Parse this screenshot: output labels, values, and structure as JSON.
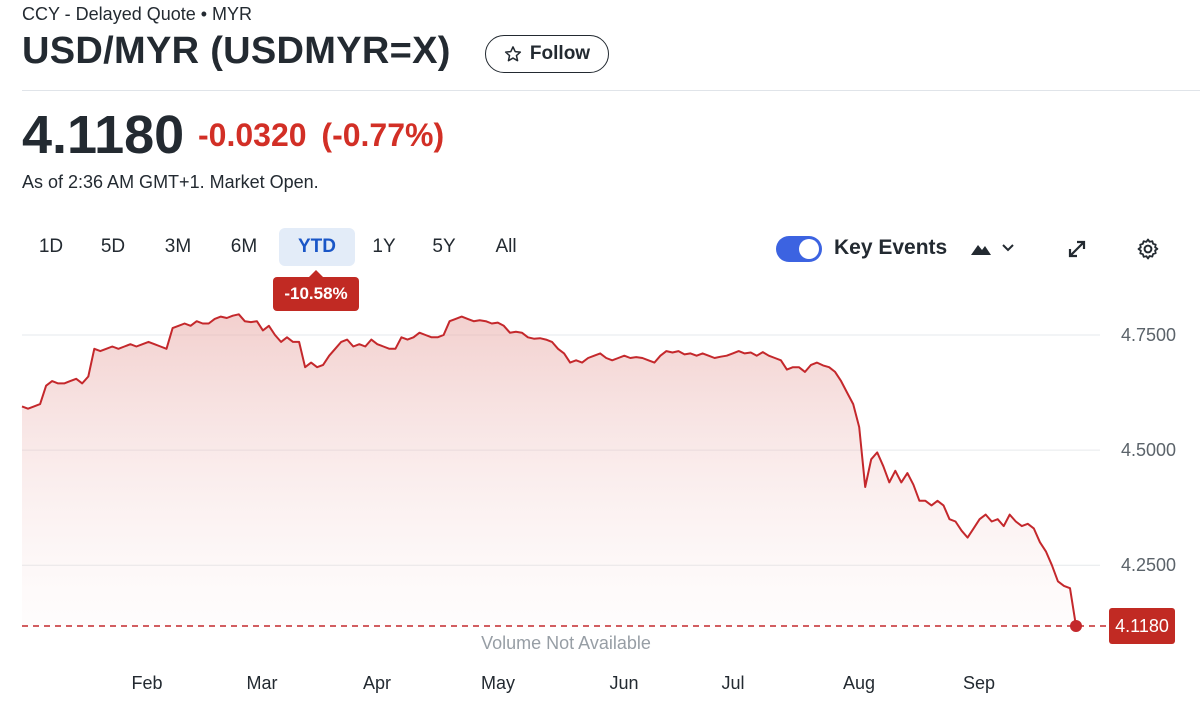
{
  "header": {
    "meta": "CCY - Delayed Quote • MYR",
    "title": "USD/MYR (USDMYR=X)",
    "follow_label": "Follow"
  },
  "quote": {
    "price": "4.1180",
    "change": "-0.0320",
    "change_pct": "(-0.77%)",
    "as_of": "As of 2:36 AM GMT+1. Market Open."
  },
  "ranges": [
    "1D",
    "5D",
    "3M",
    "6M",
    "YTD",
    "1Y",
    "5Y",
    "All"
  ],
  "active_range": "YTD",
  "ytd_change": "-10.58%",
  "key_events": {
    "label": "Key Events",
    "enabled": true
  },
  "colors": {
    "negative": "#d22f26",
    "badge": "#c12a23",
    "active_range_bg": "#e3ecf8",
    "active_range_text": "#1a56c7",
    "toggle": "#3c63e1"
  },
  "icons": [
    "star-icon",
    "mountain-icon",
    "chevron-down-icon",
    "expand-icon",
    "gear-icon"
  ],
  "chart_data": {
    "type": "area",
    "series": [
      {
        "values": [
          4.595,
          4.59,
          4.595,
          4.6,
          4.64,
          4.65,
          4.645,
          4.645,
          4.65,
          4.655,
          4.645,
          4.66,
          4.72,
          4.715,
          4.72,
          4.725,
          4.72,
          4.725,
          4.73,
          4.725,
          4.73,
          4.735,
          4.73,
          4.725,
          4.72,
          4.765,
          4.77,
          4.775,
          4.77,
          4.78,
          4.775,
          4.775,
          4.785,
          4.79,
          4.787,
          4.792,
          4.795,
          4.78,
          4.778,
          4.78,
          4.76,
          4.77,
          4.75,
          4.735,
          4.745,
          4.735,
          4.735,
          4.68,
          4.69,
          4.68,
          4.685,
          4.705,
          4.72,
          4.735,
          4.74,
          4.725,
          4.73,
          4.725,
          4.74,
          4.73,
          4.725,
          4.72,
          4.72,
          4.745,
          4.74,
          4.745,
          4.755,
          4.75,
          4.745,
          4.745,
          4.75,
          4.78,
          4.785,
          4.79,
          4.785,
          4.78,
          4.782,
          4.78,
          4.775,
          4.777,
          4.77,
          4.755,
          4.757,
          4.755,
          4.745,
          4.742,
          4.743,
          4.74,
          4.735,
          4.72,
          4.71,
          4.69,
          4.695,
          4.69,
          4.7,
          4.705,
          4.71,
          4.7,
          4.695,
          4.7,
          4.705,
          4.7,
          4.702,
          4.7,
          4.695,
          4.69,
          4.705,
          4.715,
          4.712,
          4.715,
          4.708,
          4.71,
          4.705,
          4.71,
          4.705,
          4.7,
          4.703,
          4.705,
          4.71,
          4.715,
          4.71,
          4.712,
          4.705,
          4.713,
          4.705,
          4.7,
          4.695,
          4.675,
          4.68,
          4.68,
          4.67,
          4.685,
          4.69,
          4.684,
          4.68,
          4.67,
          4.65,
          4.625,
          4.6,
          4.55,
          4.42,
          4.48,
          4.495,
          4.465,
          4.43,
          4.455,
          4.43,
          4.45,
          4.425,
          4.39,
          4.39,
          4.38,
          4.39,
          4.38,
          4.35,
          4.345,
          4.325,
          4.31,
          4.33,
          4.35,
          4.36,
          4.345,
          4.35,
          4.335,
          4.36,
          4.345,
          4.335,
          4.34,
          4.33,
          4.3,
          4.28,
          4.25,
          4.215,
          4.205,
          4.2,
          4.118
        ]
      }
    ],
    "x_ticks": [
      "Feb",
      "Mar",
      "Apr",
      "May",
      "Jun",
      "Jul",
      "Aug",
      "Sep"
    ],
    "y_ticks": [
      "4.7500",
      "4.5000",
      "4.2500"
    ],
    "ylim": [
      4.118,
      4.8
    ],
    "last_value": "4.1180",
    "volume_note": "Volume Not Available",
    "grid": true
  }
}
